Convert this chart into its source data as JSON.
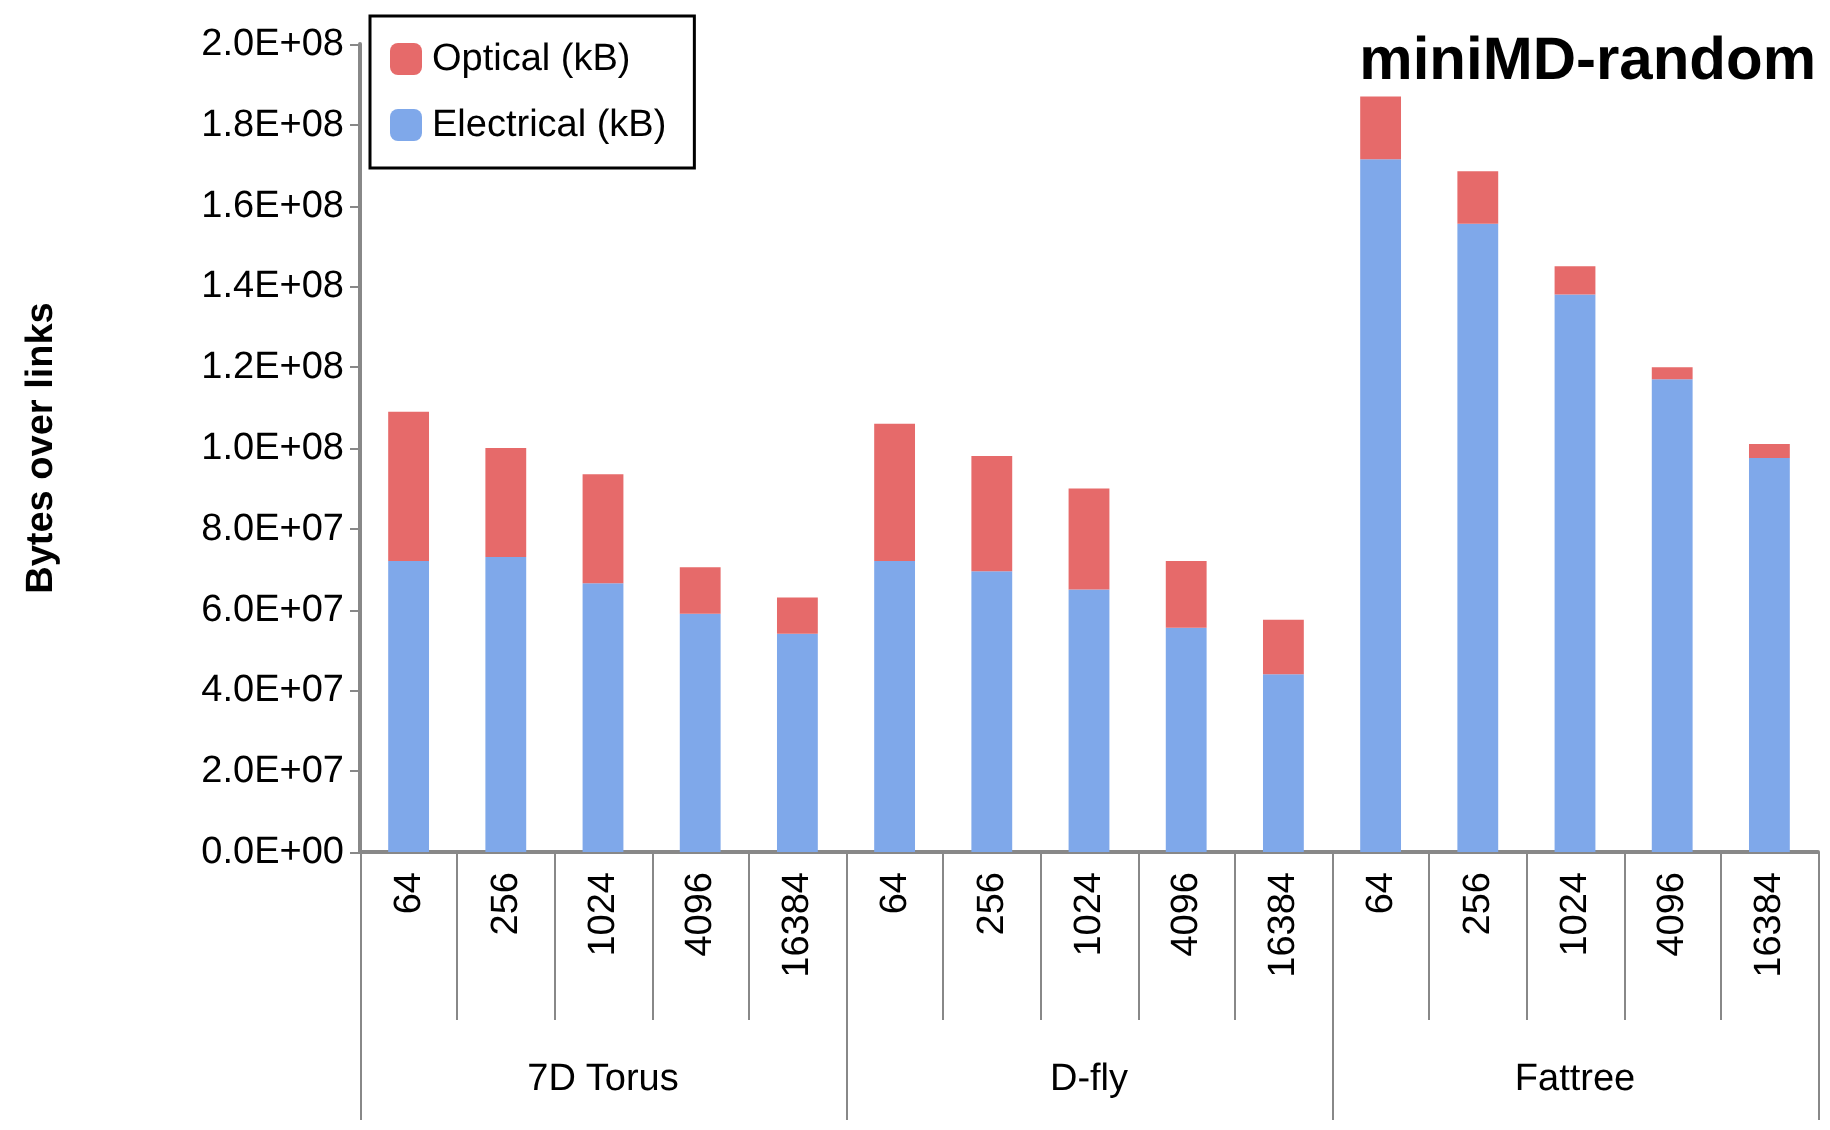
{
  "chart_data": {
    "type": "bar",
    "stacked": true,
    "title": "miniMD-random",
    "ylabel": "Bytes over links",
    "categories": [
      "64",
      "256",
      "1024",
      "4096",
      "16384",
      "64",
      "256",
      "1024",
      "4096",
      "16384",
      "64",
      "256",
      "1024",
      "4096",
      "16384"
    ],
    "annotations": [
      "7D Torus",
      "D-fly",
      "Fattree"
    ],
    "series": [
      {
        "name": "Electrical (kB)",
        "color": "#7fa8ea",
        "values": [
          72000000,
          73000000,
          66500000,
          59000000,
          54000000,
          72000000,
          69500000,
          65000000,
          55500000,
          44000000,
          171500000,
          155500000,
          138000000,
          117000000,
          97500000
        ]
      },
      {
        "name": "Optical (kB)",
        "color": "#e66a6a",
        "values": [
          37000000,
          27000000,
          27000000,
          11500000,
          9000000,
          34000000,
          28500000,
          25000000,
          16500000,
          13500000,
          15500000,
          13000000,
          7000000,
          3000000,
          3500000
        ]
      }
    ],
    "ylim": [
      0,
      200000000
    ],
    "yticks": [
      {
        "value": 0,
        "label": "0.0E+00"
      },
      {
        "value": 20000000,
        "label": "2.0E+07"
      },
      {
        "value": 40000000,
        "label": "4.0E+07"
      },
      {
        "value": 60000000,
        "label": "6.0E+07"
      },
      {
        "value": 80000000,
        "label": "8.0E+07"
      },
      {
        "value": 100000000,
        "label": "1.0E+08"
      },
      {
        "value": 120000000,
        "label": "1.2E+08"
      },
      {
        "value": 140000000,
        "label": "1.4E+08"
      },
      {
        "value": 160000000,
        "label": "1.6E+08"
      },
      {
        "value": 180000000,
        "label": "1.8E+08"
      },
      {
        "value": 200000000,
        "label": "2.0E+08"
      }
    ],
    "legend": "top left",
    "grid": false
  }
}
